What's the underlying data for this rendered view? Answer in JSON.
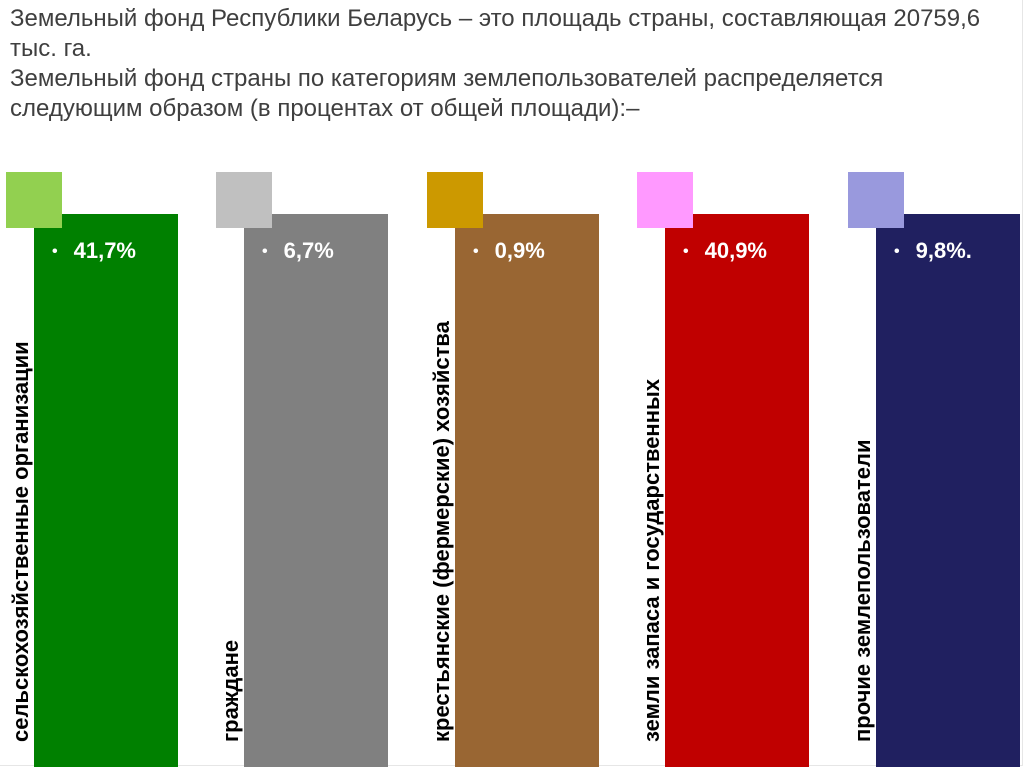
{
  "intro": {
    "line1": "Земельный фонд Республики Беларусь – это площадь страны, составляющая 20759,6 тыс. га.",
    "line2": "Земельный фонд страны по категориям землепользователей распределяется следующим образом (в процентах от общей площади):–"
  },
  "categories": [
    {
      "label": "сельскохозяйственные организации",
      "bullet": "•",
      "value": "41,7%",
      "swatch_color": "#92d050",
      "panel_color": "#008000"
    },
    {
      "label": "граждане",
      "bullet": "•",
      "value": "6,7%",
      "swatch_color": "#c0c0c0",
      "panel_color": "#808080"
    },
    {
      "label": "крестьянские (фермерские) хозяйства",
      "bullet": "•",
      "value": "0,9%",
      "swatch_color": "#cc9900",
      "panel_color": "#996633"
    },
    {
      "label": "земли запаса и государственных",
      "bullet": "•",
      "value": "40,9%",
      "swatch_color": "#ff99ff",
      "panel_color": "#c00000"
    },
    {
      "label": "прочие землепользователи",
      "bullet": "•",
      "value": "9,8%.",
      "swatch_color": "#9999dd",
      "panel_color": "#202060"
    }
  ]
}
